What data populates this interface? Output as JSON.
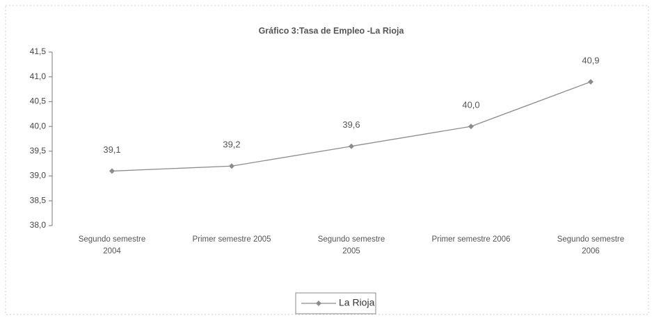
{
  "chart_data": {
    "type": "line",
    "title": "Gráfico 3:Tasa de Empleo -La Rioja",
    "categories": [
      "Segundo semestre\n2004",
      "Primer semestre 2005",
      "Segundo semestre\n2005",
      "Primer semestre 2006",
      "Segundo semestre\n2006"
    ],
    "series": [
      {
        "name": "La Rioja",
        "color": "#8c8c8c",
        "values": [
          39.1,
          39.2,
          39.6,
          40.0,
          40.9
        ],
        "value_labels": [
          "39,1",
          "39,2",
          "39,6",
          "40,0",
          "40,9"
        ]
      }
    ],
    "ylim": [
      38.0,
      41.5
    ],
    "yticks": [
      {
        "value": 38.0,
        "label": "38,0"
      },
      {
        "value": 38.5,
        "label": "38,5"
      },
      {
        "value": 39.0,
        "label": "39,0"
      },
      {
        "value": 39.5,
        "label": "39,5"
      },
      {
        "value": 40.0,
        "label": "40,0"
      },
      {
        "value": 40.5,
        "label": "40,5"
      },
      {
        "value": 41.0,
        "label": "41,0"
      },
      {
        "value": 41.5,
        "label": "41,5"
      }
    ],
    "legend": "bottom"
  }
}
